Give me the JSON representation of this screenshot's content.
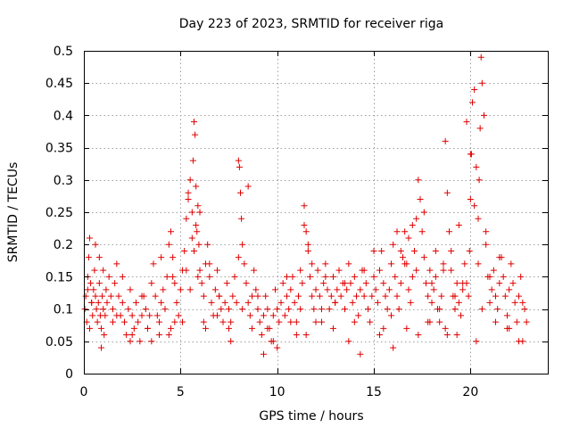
{
  "chart_data": {
    "type": "scatter",
    "title": "Day 223 of 2023, SRMTID for receiver riga",
    "xlabel": "GPS time / hours",
    "ylabel": "SRMTID / TECUs",
    "xlim": [
      0,
      24
    ],
    "ylim": [
      0,
      0.5
    ],
    "xticks": [
      0,
      5,
      10,
      15,
      20
    ],
    "xtick_labels": [
      "0",
      "5",
      "10",
      "15",
      "20"
    ],
    "yticks": [
      0,
      0.05,
      0.1,
      0.15,
      0.2,
      0.25,
      0.3,
      0.35,
      0.4,
      0.45,
      0.5
    ],
    "ytick_labels": [
      "0",
      "0.05",
      "0.1",
      "0.15",
      "0.2",
      "0.25",
      "0.3",
      "0.35",
      "0.4",
      "0.45",
      "0.5"
    ],
    "grid": true,
    "marker": "+",
    "series_color": "#e00000",
    "series": [
      {
        "name": "SRMTID",
        "x": [
          0.05,
          0.1,
          0.15,
          0.2,
          0.25,
          0.3,
          0.35,
          0.4,
          0.45,
          0.5,
          0.55,
          0.6,
          0.65,
          0.7,
          0.75,
          0.8,
          0.85,
          0.9,
          0.95,
          1.0,
          1.05,
          1.1,
          1.15,
          1.2,
          1.3,
          1.4,
          1.5,
          1.6,
          1.7,
          1.8,
          1.9,
          2.0,
          2.1,
          2.2,
          2.3,
          2.4,
          2.5,
          2.6,
          2.7,
          2.8,
          2.9,
          3.0,
          3.1,
          3.2,
          3.3,
          3.4,
          3.5,
          3.6,
          3.7,
          3.8,
          3.9,
          4.0,
          4.1,
          4.2,
          4.3,
          4.4,
          4.5,
          4.6,
          4.7,
          4.8,
          4.9,
          5.0,
          5.1,
          5.2,
          5.3,
          5.4,
          5.5,
          5.6,
          5.65,
          5.7,
          5.75,
          5.8,
          5.85,
          5.9,
          5.95,
          6.0,
          6.1,
          6.2,
          6.3,
          6.4,
          6.5,
          6.6,
          6.7,
          6.8,
          6.9,
          7.0,
          7.1,
          7.2,
          7.3,
          7.4,
          7.5,
          7.6,
          7.7,
          7.8,
          7.9,
          8.0,
          8.05,
          8.1,
          8.15,
          8.2,
          8.3,
          8.4,
          8.5,
          8.6,
          8.7,
          8.8,
          8.9,
          9.0,
          9.1,
          9.2,
          9.3,
          9.4,
          9.5,
          9.6,
          9.7,
          9.8,
          9.9,
          10.0,
          10.1,
          10.2,
          10.3,
          10.4,
          10.5,
          10.6,
          10.7,
          10.8,
          10.9,
          11.0,
          11.1,
          11.2,
          11.3,
          11.4,
          11.5,
          11.6,
          11.7,
          11.8,
          11.9,
          12.0,
          12.1,
          12.2,
          12.3,
          12.4,
          12.5,
          12.6,
          12.7,
          12.8,
          12.9,
          13.0,
          13.1,
          13.2,
          13.3,
          13.4,
          13.5,
          13.6,
          13.7,
          13.8,
          13.9,
          14.0,
          14.1,
          14.2,
          14.3,
          14.4,
          14.5,
          14.6,
          14.7,
          14.8,
          14.9,
          15.0,
          15.1,
          15.2,
          15.3,
          15.4,
          15.5,
          15.6,
          15.7,
          15.8,
          15.9,
          16.0,
          16.1,
          16.2,
          16.3,
          16.4,
          16.5,
          16.6,
          16.7,
          16.8,
          16.9,
          17.0,
          17.1,
          17.2,
          17.3,
          17.4,
          17.5,
          17.6,
          17.7,
          17.8,
          17.9,
          18.0,
          18.1,
          18.2,
          18.3,
          18.4,
          18.5,
          18.6,
          18.7,
          18.8,
          18.9,
          19.0,
          19.1,
          19.2,
          19.3,
          19.4,
          19.5,
          19.6,
          19.7,
          19.8,
          19.9,
          19.95,
          20.0,
          20.05,
          20.1,
          20.2,
          20.3,
          20.4,
          20.45,
          20.5,
          20.55,
          20.6,
          20.7,
          20.8,
          20.9,
          21.0,
          21.1,
          21.2,
          21.3,
          21.4,
          21.5,
          21.6,
          21.7,
          21.8,
          21.9,
          22.0,
          22.1,
          22.2,
          22.3,
          22.4,
          22.5,
          22.6,
          22.7,
          22.8,
          22.9,
          0.2,
          0.4,
          0.6,
          0.8,
          1.0,
          1.5,
          2.0,
          2.5,
          3.0,
          3.5,
          4.0,
          4.5,
          4.6,
          4.7,
          5.3,
          5.4,
          5.5,
          5.6,
          5.7,
          5.8,
          5.9,
          6.0,
          6.2,
          6.5,
          7.0,
          7.5,
          8.0,
          8.2,
          8.5,
          9.0,
          9.5,
          10.0,
          10.5,
          11.0,
          11.2,
          11.4,
          11.6,
          11.8,
          12.0,
          12.5,
          13.0,
          13.5,
          14.0,
          14.5,
          15.0,
          15.5,
          16.0,
          16.2,
          16.4,
          16.6,
          16.8,
          17.0,
          17.2,
          17.4,
          17.6,
          17.8,
          18.0,
          18.2,
          18.4,
          18.6,
          18.8,
          19.0,
          19.2,
          19.4,
          19.6,
          19.8,
          20.0,
          20.2,
          20.4,
          20.6,
          20.8,
          21.0,
          21.5,
          22.0,
          22.5,
          0.3,
          0.9,
          1.7,
          2.4,
          3.3,
          3.9,
          4.4,
          5.1,
          6.3,
          6.9,
          7.6,
          8.7,
          9.3,
          9.8,
          10.7,
          11.5,
          12.3,
          12.9,
          13.7,
          14.3,
          15.3,
          15.9,
          16.7,
          17.3,
          17.9,
          18.7,
          19.3,
          20.3,
          21.3,
          21.9,
          22.7
        ],
        "y": [
          0.1,
          0.12,
          0.08,
          0.15,
          0.18,
          0.21,
          0.14,
          0.11,
          0.09,
          0.13,
          0.16,
          0.12,
          0.1,
          0.08,
          0.11,
          0.14,
          0.09,
          0.07,
          0.12,
          0.1,
          0.06,
          0.09,
          0.13,
          0.11,
          0.15,
          0.12,
          0.1,
          0.14,
          0.17,
          0.12,
          0.09,
          0.11,
          0.08,
          0.06,
          0.1,
          0.13,
          0.09,
          0.07,
          0.11,
          0.08,
          0.05,
          0.09,
          0.12,
          0.1,
          0.07,
          0.09,
          0.14,
          0.17,
          0.12,
          0.09,
          0.08,
          0.11,
          0.13,
          0.1,
          0.15,
          0.2,
          0.22,
          0.18,
          0.14,
          0.11,
          0.09,
          0.13,
          0.16,
          0.19,
          0.24,
          0.28,
          0.3,
          0.25,
          0.33,
          0.39,
          0.37,
          0.29,
          0.22,
          0.26,
          0.2,
          0.16,
          0.14,
          0.12,
          0.17,
          0.2,
          0.15,
          0.11,
          0.09,
          0.13,
          0.16,
          0.12,
          0.1,
          0.08,
          0.11,
          0.14,
          0.1,
          0.08,
          0.12,
          0.15,
          0.11,
          0.33,
          0.32,
          0.28,
          0.24,
          0.2,
          0.17,
          0.14,
          0.11,
          0.09,
          0.12,
          0.16,
          0.13,
          0.1,
          0.08,
          0.06,
          0.09,
          0.12,
          0.1,
          0.07,
          0.05,
          0.09,
          0.13,
          0.1,
          0.08,
          0.11,
          0.14,
          0.09,
          0.12,
          0.1,
          0.13,
          0.15,
          0.11,
          0.08,
          0.12,
          0.16,
          0.14,
          0.26,
          0.22,
          0.19,
          0.15,
          0.12,
          0.1,
          0.13,
          0.16,
          0.12,
          0.1,
          0.14,
          0.17,
          0.13,
          0.1,
          0.12,
          0.15,
          0.11,
          0.13,
          0.16,
          0.12,
          0.14,
          0.1,
          0.13,
          0.17,
          0.14,
          0.11,
          0.15,
          0.12,
          0.09,
          0.13,
          0.16,
          0.12,
          0.14,
          0.1,
          0.08,
          0.12,
          0.15,
          0.13,
          0.11,
          0.16,
          0.19,
          0.14,
          0.12,
          0.1,
          0.13,
          0.17,
          0.2,
          0.15,
          0.12,
          0.1,
          0.14,
          0.18,
          0.22,
          0.17,
          0.13,
          0.11,
          0.15,
          0.19,
          0.24,
          0.3,
          0.27,
          0.22,
          0.18,
          0.14,
          0.12,
          0.16,
          0.11,
          0.13,
          0.15,
          0.1,
          0.08,
          0.12,
          0.17,
          0.36,
          0.28,
          0.22,
          0.16,
          0.12,
          0.1,
          0.14,
          0.11,
          0.09,
          0.13,
          0.17,
          0.14,
          0.12,
          0.19,
          0.27,
          0.34,
          0.42,
          0.44,
          0.32,
          0.24,
          0.3,
          0.38,
          0.49,
          0.45,
          0.4,
          0.2,
          0.15,
          0.11,
          0.13,
          0.16,
          0.12,
          0.1,
          0.14,
          0.18,
          0.15,
          0.12,
          0.09,
          0.13,
          0.17,
          0.14,
          0.11,
          0.08,
          0.12,
          0.15,
          0.11,
          0.1,
          0.08,
          0.13,
          0.11,
          0.2,
          0.18,
          0.16,
          0.08,
          0.15,
          0.06,
          0.12,
          0.05,
          0.18,
          0.07,
          0.15,
          0.08,
          0.16,
          0.27,
          0.13,
          0.21,
          0.19,
          0.23,
          0.15,
          0.25,
          0.08,
          0.17,
          0.12,
          0.07,
          0.18,
          0.1,
          0.29,
          0.12,
          0.07,
          0.04,
          0.15,
          0.06,
          0.1,
          0.23,
          0.2,
          0.17,
          0.08,
          0.15,
          0.11,
          0.14,
          0.08,
          0.16,
          0.19,
          0.07,
          0.04,
          0.22,
          0.19,
          0.17,
          0.21,
          0.23,
          0.16,
          0.27,
          0.25,
          0.08,
          0.14,
          0.19,
          0.1,
          0.16,
          0.06,
          0.19,
          0.12,
          0.23,
          0.14,
          0.39,
          0.34,
          0.26,
          0.17,
          0.1,
          0.22,
          0.15,
          0.18,
          0.07,
          0.05,
          0.07,
          0.04,
          0.09,
          0.05,
          0.07,
          0.06,
          0.06,
          0.08,
          0.07,
          0.09,
          0.05,
          0.07,
          0.03,
          0.05,
          0.08,
          0.06,
          0.08,
          0.07,
          0.05,
          0.03,
          0.06,
          0.09,
          0.07,
          0.06,
          0.08,
          0.07,
          0.06,
          0.05,
          0.08,
          0.07,
          0.05
        ]
      }
    ]
  }
}
